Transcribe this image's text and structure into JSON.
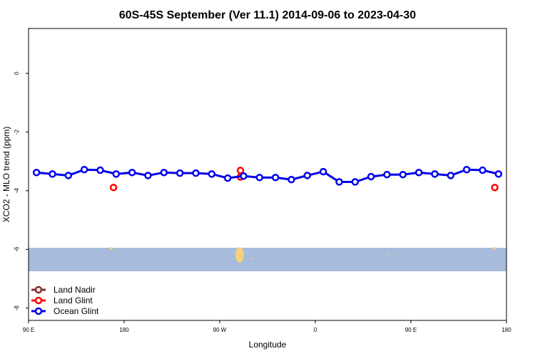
{
  "chart_data": {
    "type": "line",
    "title": "60S-45S September (Ver 11.1)   2014-09-06 to 2023-04-30",
    "xlabel": "Longitude",
    "ylabel": "XCO2 - MLO trend (ppm)",
    "xlim": [
      90,
      540
    ],
    "xticks": [
      {
        "value": 90,
        "label": "90 E"
      },
      {
        "value": 180,
        "label": "180"
      },
      {
        "value": 270,
        "label": "90 W"
      },
      {
        "value": 360,
        "label": "0"
      },
      {
        "value": 450,
        "label": "90 E"
      },
      {
        "value": 540,
        "label": "180"
      }
    ],
    "ylim": [
      -8.42,
      1.53
    ],
    "yticks": [
      0,
      -2,
      -4,
      -6,
      -8
    ],
    "legend": "bottom-left",
    "series": [
      {
        "name": "Land Nadir",
        "color": "#8b2a2a",
        "mode": "lines+markers",
        "x": [],
        "values": []
      },
      {
        "name": "Land Glint",
        "color": "#ff0000",
        "mode": "markers",
        "x": [
          170,
          289.5,
          289.5,
          529
        ],
        "values": [
          -3.89,
          -3.31,
          -3.53,
          -3.89
        ]
      },
      {
        "name": "Ocean Glint",
        "color": "#0000ee",
        "mode": "lines+markers",
        "x": [
          97.5,
          112.5,
          127.5,
          142.5,
          157.5,
          172.5,
          187.5,
          202.5,
          217.5,
          232.5,
          247.5,
          262.5,
          277.5,
          292.5,
          307.5,
          322.5,
          337.5,
          352.5,
          367.5,
          382.5,
          397.5,
          412.5,
          427.5,
          442.5,
          457.5,
          472.5,
          487.5,
          502.5,
          517.5,
          532.5
        ],
        "values": [
          -3.38,
          -3.43,
          -3.48,
          -3.28,
          -3.3,
          -3.43,
          -3.38,
          -3.48,
          -3.38,
          -3.4,
          -3.4,
          -3.43,
          -3.57,
          -3.5,
          -3.55,
          -3.55,
          -3.62,
          -3.48,
          -3.35,
          -3.7,
          -3.7,
          -3.52,
          -3.45,
          -3.45,
          -3.38,
          -3.43,
          -3.48,
          -3.28,
          -3.3,
          -3.43
        ]
      }
    ]
  }
}
